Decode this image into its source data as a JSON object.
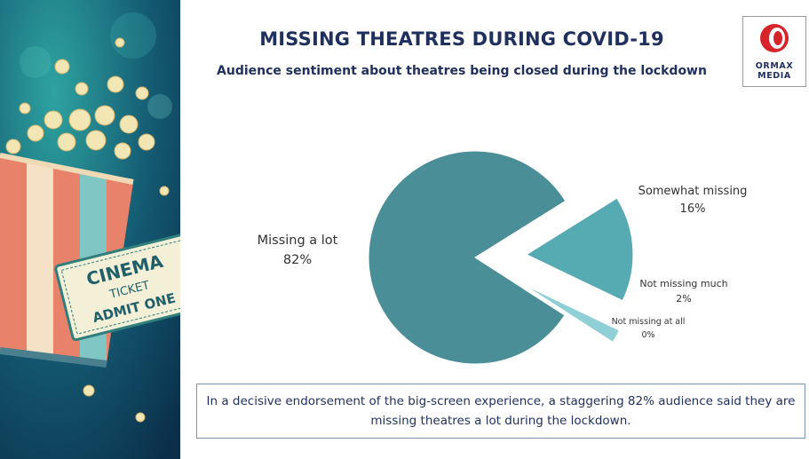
{
  "header": {
    "title": "MISSING THEATRES DURING COVID-19",
    "subtitle": "Audience sentiment about theatres being closed during the lockdown"
  },
  "logo": {
    "line1": "ORMAX",
    "line2": "MEDIA"
  },
  "illustration": {
    "ticket_line1": "CINEMA",
    "ticket_line2": "TICKET",
    "ticket_line3": "ADMIT ONE"
  },
  "chart_data": {
    "type": "pie",
    "categories": [
      "Missing a lot",
      "Somewhat missing",
      "Not missing much",
      "Not missing at all"
    ],
    "values": [
      82,
      16,
      2,
      0
    ],
    "value_labels": [
      "82%",
      "16%",
      "2%",
      "0%"
    ],
    "colors": [
      "#4a8f97",
      "#56aab2",
      "#8fcfd6",
      "#b8e2e6"
    ],
    "exploded": true
  },
  "summary": "In a decisive endorsement of the big-screen experience, a staggering 82% audience said they are missing theatres a lot during the lockdown."
}
